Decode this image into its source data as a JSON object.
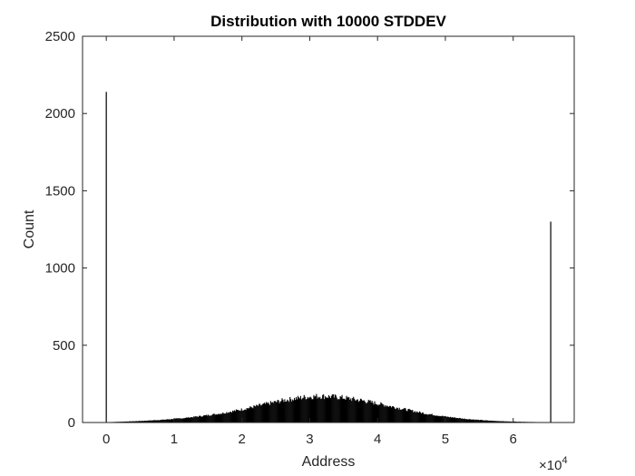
{
  "chart_data": {
    "type": "bar",
    "title": "Distribution with 10000 STDDEV",
    "xlabel": "Address",
    "ylabel": "Count",
    "xlim": [
      -3500,
      69000
    ],
    "ylim": [
      0,
      2500
    ],
    "x_ticks": [
      0,
      10000,
      20000,
      30000,
      40000,
      50000,
      60000
    ],
    "x_tick_labels": [
      "0",
      "1",
      "2",
      "3",
      "4",
      "5",
      "6"
    ],
    "x_exponent_label": {
      "base": "×10",
      "exponent": "4"
    },
    "y_ticks": [
      0,
      500,
      1000,
      1500,
      2000,
      2500
    ],
    "y_tick_labels": [
      "0",
      "500",
      "1000",
      "1500",
      "2000",
      "2500"
    ],
    "grid": false,
    "bar_color": "#000000",
    "spikes": [
      {
        "x": 0,
        "value": 2140
      },
      {
        "x": 65535,
        "value": 1300
      }
    ],
    "distribution_envelope": {
      "x": [
        500,
        2000,
        5000,
        8000,
        11000,
        14000,
        17000,
        20000,
        23000,
        26000,
        29000,
        31000,
        33000,
        35000,
        38000,
        41000,
        44000,
        47000,
        50000,
        53000,
        56000,
        59000,
        62000,
        64500
      ],
      "values": [
        3,
        5,
        10,
        17,
        27,
        42,
        60,
        85,
        115,
        143,
        163,
        170,
        168,
        160,
        140,
        113,
        85,
        58,
        38,
        23,
        13,
        7,
        4,
        2
      ]
    }
  }
}
